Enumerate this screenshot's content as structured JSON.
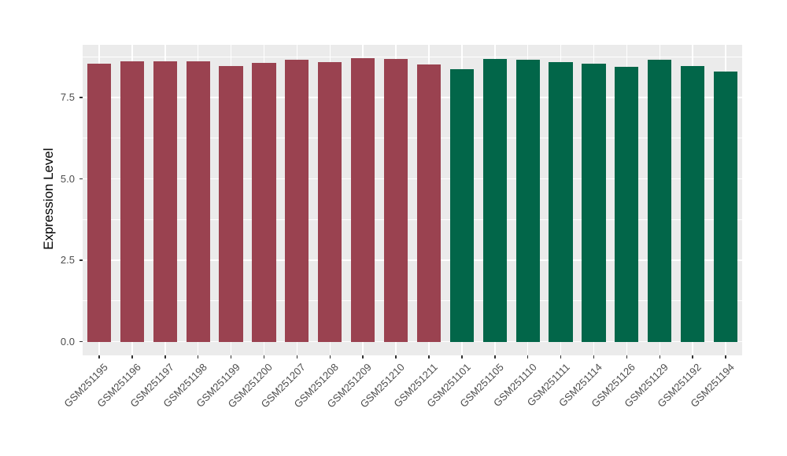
{
  "chart_data": {
    "type": "bar",
    "title": "",
    "xlabel": "",
    "ylabel": "Expression Level",
    "categories": [
      "GSM251195",
      "GSM251196",
      "GSM251197",
      "GSM251198",
      "GSM251199",
      "GSM251200",
      "GSM251207",
      "GSM251208",
      "GSM251209",
      "GSM251210",
      "GSM251211",
      "GSM251101",
      "GSM251105",
      "GSM251110",
      "GSM251111",
      "GSM251114",
      "GSM251126",
      "GSM251129",
      "GSM251192",
      "GSM251194"
    ],
    "values": [
      8.54,
      8.61,
      8.61,
      8.61,
      8.46,
      8.56,
      8.66,
      8.59,
      8.7,
      8.68,
      8.52,
      8.38,
      8.68,
      8.66,
      8.59,
      8.55,
      8.45,
      8.65,
      8.46,
      8.31
    ],
    "bar_colors": [
      "#9A4250",
      "#9A4250",
      "#9A4250",
      "#9A4250",
      "#9A4250",
      "#9A4250",
      "#9A4250",
      "#9A4250",
      "#9A4250",
      "#9A4250",
      "#9A4250",
      "#026649",
      "#026649",
      "#026649",
      "#026649",
      "#026649",
      "#026649",
      "#026649",
      "#026649",
      "#026649"
    ],
    "group_palette": {
      "maroon": "#9A4250",
      "green": "#026649"
    },
    "ylim": [
      -0.42,
      9.12
    ],
    "yticks": {
      "values": [
        0.0,
        2.5,
        5.0,
        7.5
      ],
      "labels": [
        "0.0",
        "2.5",
        "5.0",
        "7.5"
      ],
      "minor": [
        1.25,
        3.75,
        6.25,
        8.75
      ]
    },
    "bar_width_fraction": 0.72,
    "grid": "on",
    "legend_position": "none",
    "panel_bg": "#EBEBEB",
    "grid_color": "#FFFFFF",
    "tick_label_color": "#4D4D4D"
  }
}
